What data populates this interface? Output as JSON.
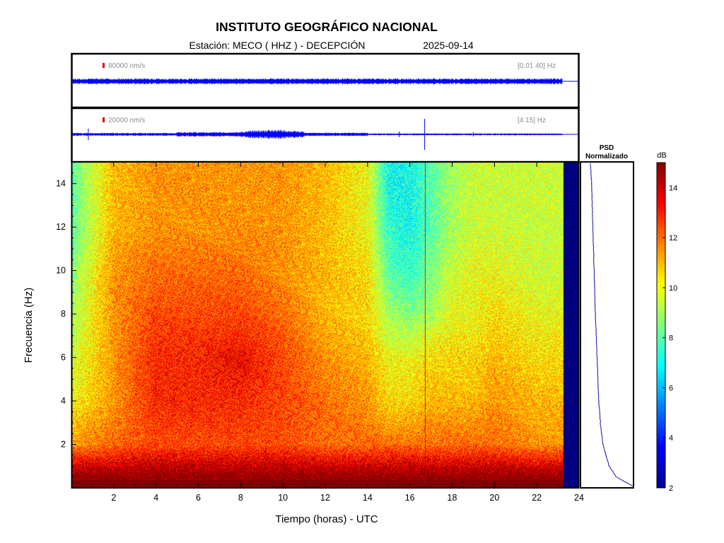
{
  "header": {
    "title": "INSTITUTO GEOGRÁFICO NACIONAL",
    "station_text": "Estación:  MECO ( HHZ ) - DECEPCIÓN",
    "date": "2025-09-14"
  },
  "traces": [
    {
      "amplitude_label": "80000 nm/s",
      "band_label": "[0.01 40] Hz",
      "scale_color": "#e00000",
      "trace_color": "#0000ff"
    },
    {
      "amplitude_label": "20000 nm/s",
      "band_label": "[4 15] Hz",
      "scale_color": "#e00000",
      "trace_color": "#0000ff"
    }
  ],
  "psd_panel": {
    "title_line1": "PSD",
    "title_line2": "Normalizado",
    "line_color": "#1a1aa8"
  },
  "colorbar": {
    "unit": "dB",
    "min": 2,
    "max": 15,
    "ticks": [
      "2",
      "4",
      "6",
      "8",
      "10",
      "12",
      "14"
    ],
    "colormap": "jet"
  },
  "chart_data": {
    "type": "heatmap",
    "title": "INSTITUTO GEOGRÁFICO NACIONAL",
    "xlabel": "Tiempo (horas) - UTC",
    "ylabel": "Frecuencia  (Hz)",
    "xlim": [
      0,
      24
    ],
    "ylim": [
      0,
      15
    ],
    "x_ticks": [
      "2",
      "4",
      "6",
      "8",
      "10",
      "12",
      "14",
      "16",
      "18",
      "20",
      "22",
      "24"
    ],
    "y_ticks": [
      "2",
      "4",
      "6",
      "8",
      "10",
      "12",
      "14"
    ],
    "data_end_hour": 23.25,
    "no_data_color": "#000080",
    "value_unit": "dB",
    "time_hours": [
      0,
      2,
      4,
      6,
      8,
      10,
      12,
      14,
      15,
      16,
      17,
      18,
      19,
      20,
      22,
      23.25
    ],
    "frequency_hz": [
      0.5,
      2,
      4,
      6,
      8,
      10,
      12,
      14
    ],
    "values_db": [
      [
        15,
        15,
        15,
        15,
        15,
        15,
        15,
        15,
        15,
        15,
        15,
        15,
        15,
        15,
        15,
        15
      ],
      [
        11.5,
        12,
        12.5,
        12.5,
        12.5,
        12.5,
        12,
        12,
        12,
        12,
        12,
        12,
        12,
        12,
        11.5,
        11.5
      ],
      [
        10,
        11.5,
        13,
        13,
        13,
        12.5,
        12,
        11.5,
        10.5,
        10.5,
        11,
        11,
        11,
        11.5,
        11,
        11
      ],
      [
        9.5,
        11.5,
        13,
        13,
        13.5,
        12.5,
        11.5,
        11,
        10,
        10,
        10.5,
        10.5,
        10.5,
        11,
        10.5,
        10.5
      ],
      [
        9,
        11.5,
        12.5,
        12.5,
        12.5,
        12,
        11,
        10.5,
        9,
        8.5,
        9,
        10,
        10,
        10.5,
        10,
        10
      ],
      [
        8.5,
        11.5,
        12,
        12,
        12,
        11.5,
        11,
        10.5,
        8,
        7.5,
        8.5,
        9.5,
        10,
        10,
        9.5,
        9.5
      ],
      [
        8,
        11,
        11.5,
        11.5,
        11.5,
        11.5,
        11,
        10,
        7.5,
        7,
        8,
        9,
        9.5,
        9.5,
        9.5,
        9.5
      ],
      [
        8,
        11,
        11.5,
        11.5,
        11.5,
        11.5,
        11,
        10,
        7,
        7,
        8,
        9,
        9.5,
        9.5,
        9.5,
        9.5
      ]
    ],
    "psd_normalized": [
      {
        "freq_hz": 0.1,
        "value": 1.0
      },
      {
        "freq_hz": 0.5,
        "value": 0.62
      },
      {
        "freq_hz": 1,
        "value": 0.45
      },
      {
        "freq_hz": 2,
        "value": 0.3
      },
      {
        "freq_hz": 3,
        "value": 0.24
      },
      {
        "freq_hz": 4,
        "value": 0.2
      },
      {
        "freq_hz": 6,
        "value": 0.16
      },
      {
        "freq_hz": 8,
        "value": 0.12
      },
      {
        "freq_hz": 10,
        "value": 0.09
      },
      {
        "freq_hz": 12,
        "value": 0.06
      },
      {
        "freq_hz": 14,
        "value": 0.03
      },
      {
        "freq_hz": 15,
        "value": 0.0
      }
    ]
  }
}
